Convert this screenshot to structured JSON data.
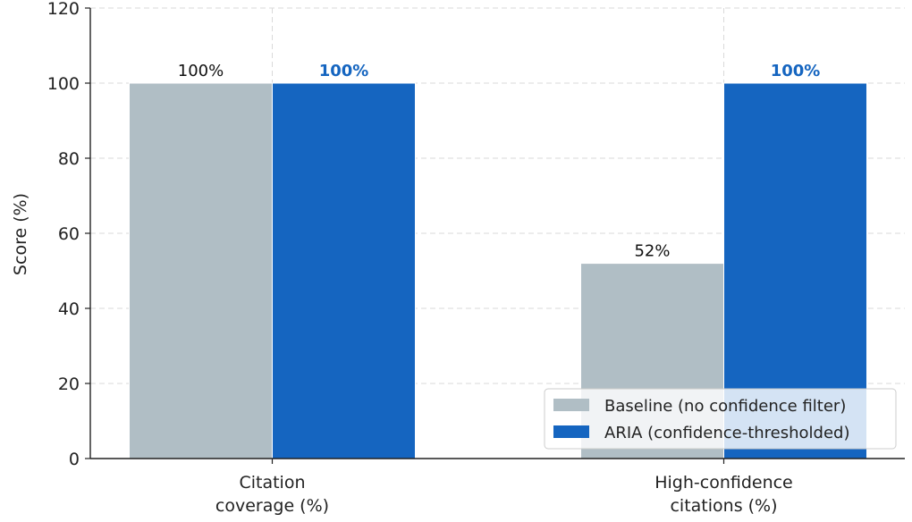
{
  "chart_data": {
    "type": "bar",
    "categories": [
      [
        "Citation",
        "coverage (%)"
      ],
      [
        "High-confidence",
        "citations (%)"
      ]
    ],
    "series": [
      {
        "name": "Baseline (no confidence filter)",
        "color": "#b0bec5",
        "values": [
          100,
          52
        ],
        "labels": [
          "100%",
          "52%"
        ],
        "label_color": "#111111",
        "label_bold": false
      },
      {
        "name": "ARIA (confidence-thresholded)",
        "color": "#1565c0",
        "values": [
          100,
          100
        ],
        "labels": [
          "100%",
          "100%"
        ],
        "label_color": "#1565c0",
        "label_bold": true
      }
    ],
    "ylabel": "Score (%)",
    "ylim": [
      0,
      120
    ],
    "yticks": [
      0,
      20,
      40,
      60,
      80,
      100,
      120
    ],
    "grid": true,
    "legend_position": "bottom-right"
  }
}
